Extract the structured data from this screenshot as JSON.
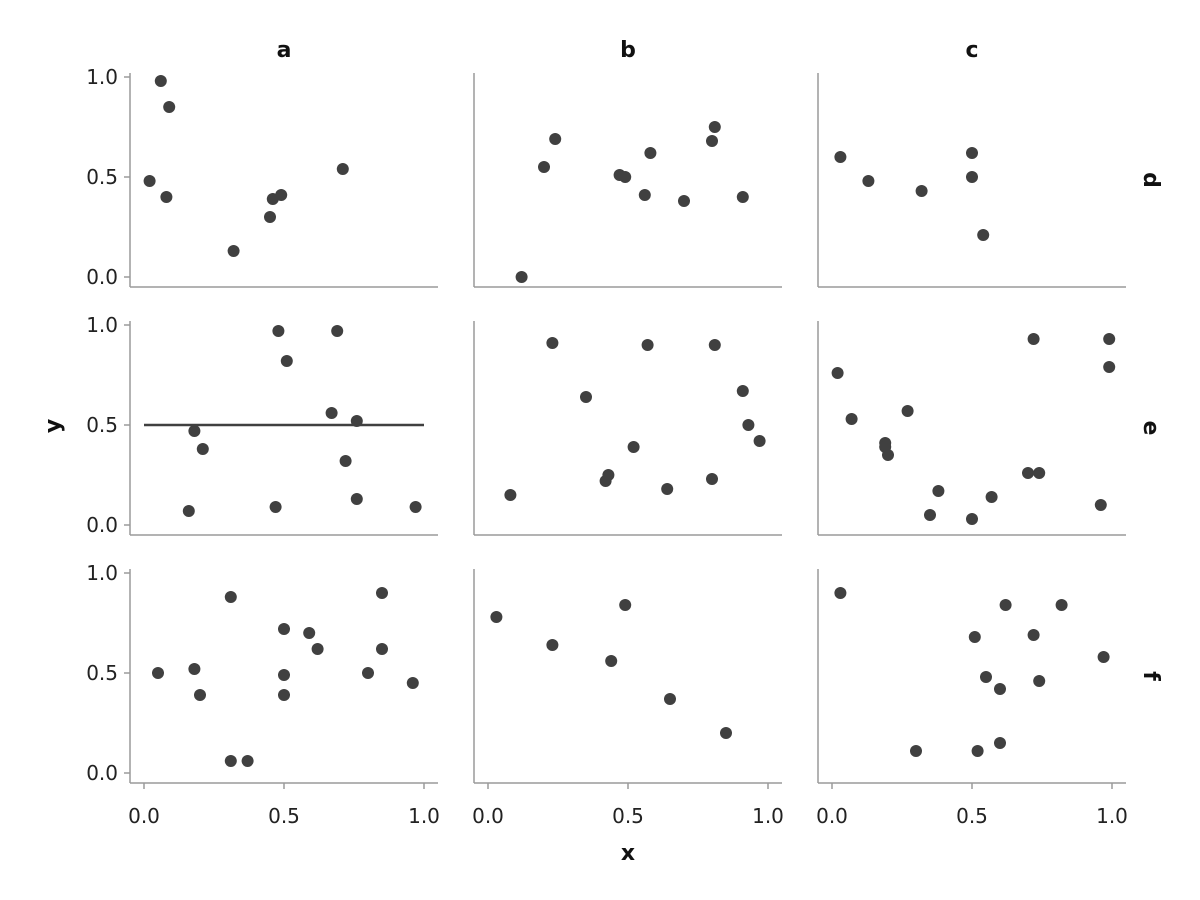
{
  "chart_data": {
    "type": "scatter",
    "xlabel": "x",
    "ylabel": "y",
    "xlim": [
      -0.05,
      1.05
    ],
    "ylim": [
      -0.05,
      1.02
    ],
    "x_ticks": [
      "0.0",
      "0.5",
      "1.0"
    ],
    "y_ticks": [
      "0.0",
      "0.5",
      "1.0"
    ],
    "x_tick_values": [
      0,
      0.5,
      1
    ],
    "y_tick_values": [
      0,
      0.5,
      1
    ],
    "columns": [
      "a",
      "b",
      "c"
    ],
    "rows": [
      "d",
      "e",
      "f"
    ],
    "grid": false,
    "point_color": "#404040",
    "panels": [
      {
        "row": "d",
        "col": "a",
        "points": [
          [
            0.02,
            0.48
          ],
          [
            0.06,
            0.98
          ],
          [
            0.09,
            0.85
          ],
          [
            0.08,
            0.4
          ],
          [
            0.32,
            0.13
          ],
          [
            0.45,
            0.3
          ],
          [
            0.46,
            0.39
          ],
          [
            0.49,
            0.41
          ],
          [
            0.71,
            0.54
          ]
        ]
      },
      {
        "row": "d",
        "col": "b",
        "points": [
          [
            0.12,
            0.0
          ],
          [
            0.2,
            0.55
          ],
          [
            0.24,
            0.69
          ],
          [
            0.47,
            0.51
          ],
          [
            0.49,
            0.5
          ],
          [
            0.56,
            0.41
          ],
          [
            0.58,
            0.62
          ],
          [
            0.7,
            0.38
          ],
          [
            0.8,
            0.68
          ],
          [
            0.81,
            0.75
          ],
          [
            0.91,
            0.4
          ]
        ]
      },
      {
        "row": "d",
        "col": "c",
        "points": [
          [
            0.03,
            0.6
          ],
          [
            0.13,
            0.48
          ],
          [
            0.32,
            0.43
          ],
          [
            0.5,
            0.62
          ],
          [
            0.5,
            0.5
          ],
          [
            0.54,
            0.21
          ]
        ]
      },
      {
        "row": "e",
        "col": "a",
        "points": [
          [
            0.16,
            0.07
          ],
          [
            0.18,
            0.47
          ],
          [
            0.21,
            0.38
          ],
          [
            0.47,
            0.09
          ],
          [
            0.48,
            0.97
          ],
          [
            0.51,
            0.82
          ],
          [
            0.67,
            0.56
          ],
          [
            0.69,
            0.97
          ],
          [
            0.72,
            0.32
          ],
          [
            0.76,
            0.52
          ],
          [
            0.76,
            0.13
          ],
          [
            0.97,
            0.09
          ]
        ],
        "hline": {
          "y": 0.5,
          "x_from": 0,
          "x_to": 1
        }
      },
      {
        "row": "e",
        "col": "b",
        "points": [
          [
            0.08,
            0.15
          ],
          [
            0.23,
            0.91
          ],
          [
            0.35,
            0.64
          ],
          [
            0.42,
            0.22
          ],
          [
            0.43,
            0.25
          ],
          [
            0.52,
            0.39
          ],
          [
            0.57,
            0.9
          ],
          [
            0.64,
            0.18
          ],
          [
            0.8,
            0.23
          ],
          [
            0.81,
            0.9
          ],
          [
            0.91,
            0.67
          ],
          [
            0.93,
            0.5
          ],
          [
            0.97,
            0.42
          ]
        ]
      },
      {
        "row": "e",
        "col": "c",
        "points": [
          [
            0.02,
            0.76
          ],
          [
            0.07,
            0.53
          ],
          [
            0.19,
            0.41
          ],
          [
            0.19,
            0.39
          ],
          [
            0.2,
            0.35
          ],
          [
            0.27,
            0.57
          ],
          [
            0.35,
            0.05
          ],
          [
            0.38,
            0.17
          ],
          [
            0.5,
            0.03
          ],
          [
            0.57,
            0.14
          ],
          [
            0.7,
            0.26
          ],
          [
            0.72,
            0.93
          ],
          [
            0.74,
            0.26
          ],
          [
            0.96,
            0.1
          ],
          [
            0.99,
            0.79
          ],
          [
            0.99,
            0.93
          ]
        ]
      },
      {
        "row": "f",
        "col": "a",
        "points": [
          [
            0.05,
            0.5
          ],
          [
            0.18,
            0.52
          ],
          [
            0.2,
            0.39
          ],
          [
            0.31,
            0.06
          ],
          [
            0.31,
            0.88
          ],
          [
            0.37,
            0.06
          ],
          [
            0.5,
            0.72
          ],
          [
            0.5,
            0.49
          ],
          [
            0.5,
            0.39
          ],
          [
            0.59,
            0.7
          ],
          [
            0.62,
            0.62
          ],
          [
            0.8,
            0.5
          ],
          [
            0.85,
            0.62
          ],
          [
            0.85,
            0.9
          ],
          [
            0.96,
            0.45
          ]
        ]
      },
      {
        "row": "f",
        "col": "b",
        "points": [
          [
            0.03,
            0.78
          ],
          [
            0.23,
            0.64
          ],
          [
            0.44,
            0.56
          ],
          [
            0.49,
            0.84
          ],
          [
            0.65,
            0.37
          ],
          [
            0.85,
            0.2
          ]
        ]
      },
      {
        "row": "f",
        "col": "c",
        "points": [
          [
            0.03,
            0.9
          ],
          [
            0.3,
            0.11
          ],
          [
            0.51,
            0.68
          ],
          [
            0.52,
            0.11
          ],
          [
            0.55,
            0.48
          ],
          [
            0.6,
            0.42
          ],
          [
            0.6,
            0.15
          ],
          [
            0.62,
            0.84
          ],
          [
            0.72,
            0.69
          ],
          [
            0.74,
            0.46
          ],
          [
            0.82,
            0.84
          ],
          [
            0.97,
            0.58
          ]
        ]
      }
    ]
  }
}
